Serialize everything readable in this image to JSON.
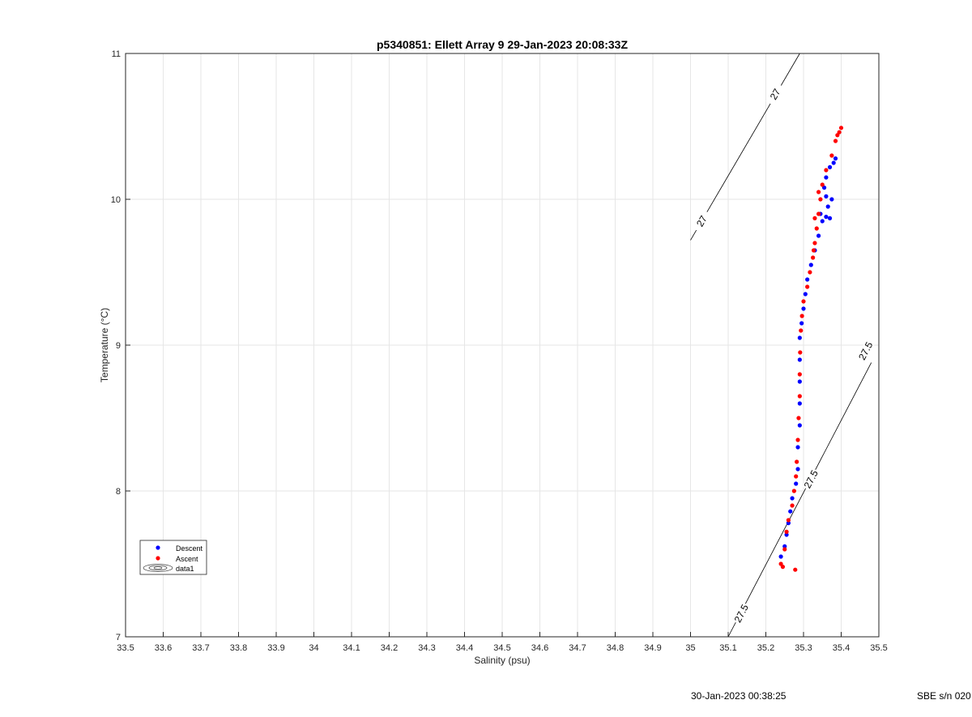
{
  "chart_data": {
    "type": "scatter",
    "title": "p5340851: Ellett Array 9 29-Jan-2023 20:08:33Z",
    "xlabel": "Salinity (psu)",
    "ylabel": "Temperature (°C)",
    "xlim": [
      33.5,
      35.5
    ],
    "ylim": [
      7,
      11
    ],
    "xticks": [
      "33.5",
      "33.6",
      "33.7",
      "33.8",
      "33.9",
      "34",
      "34.1",
      "34.2",
      "34.3",
      "34.4",
      "34.5",
      "34.6",
      "34.7",
      "34.8",
      "34.9",
      "35",
      "35.1",
      "35.2",
      "35.3",
      "35.4",
      "35.5"
    ],
    "yticks": [
      "7",
      "8",
      "9",
      "10",
      "11"
    ],
    "grid": true,
    "legend_position": "lower-left",
    "legend": [
      "Descent",
      "Ascent",
      "data1"
    ],
    "series": [
      {
        "name": "Descent",
        "color": "#0000ff",
        "points": [
          [
            35.24,
            7.55
          ],
          [
            35.25,
            7.62
          ],
          [
            35.255,
            7.7
          ],
          [
            35.26,
            7.78
          ],
          [
            35.265,
            7.86
          ],
          [
            35.27,
            7.95
          ],
          [
            35.28,
            8.05
          ],
          [
            35.285,
            8.15
          ],
          [
            35.285,
            8.3
          ],
          [
            35.29,
            8.45
          ],
          [
            35.29,
            8.6
          ],
          [
            35.29,
            8.75
          ],
          [
            35.29,
            8.9
          ],
          [
            35.29,
            9.05
          ],
          [
            35.295,
            9.15
          ],
          [
            35.3,
            9.25
          ],
          [
            35.305,
            9.35
          ],
          [
            35.31,
            9.45
          ],
          [
            35.32,
            9.55
          ],
          [
            35.33,
            9.65
          ],
          [
            35.34,
            9.75
          ],
          [
            35.35,
            9.85
          ],
          [
            35.36,
            9.88
          ],
          [
            35.365,
            9.95
          ],
          [
            35.36,
            10.02
          ],
          [
            35.355,
            10.08
          ],
          [
            35.36,
            10.15
          ],
          [
            35.37,
            10.22
          ],
          [
            35.38,
            10.25
          ],
          [
            35.385,
            10.28
          ],
          [
            35.345,
            9.9
          ],
          [
            35.37,
            9.87
          ],
          [
            35.375,
            10.0
          ]
        ]
      },
      {
        "name": "Ascent",
        "color": "#ff0000",
        "points": [
          [
            35.24,
            7.5
          ],
          [
            35.245,
            7.48
          ],
          [
            35.278,
            7.46
          ],
          [
            35.25,
            7.6
          ],
          [
            35.255,
            7.72
          ],
          [
            35.26,
            7.8
          ],
          [
            35.27,
            7.9
          ],
          [
            35.275,
            8.0
          ],
          [
            35.28,
            8.1
          ],
          [
            35.282,
            8.2
          ],
          [
            35.285,
            8.35
          ],
          [
            35.287,
            8.5
          ],
          [
            35.29,
            8.65
          ],
          [
            35.29,
            8.8
          ],
          [
            35.291,
            8.95
          ],
          [
            35.293,
            9.1
          ],
          [
            35.296,
            9.2
          ],
          [
            35.3,
            9.3
          ],
          [
            35.31,
            9.4
          ],
          [
            35.317,
            9.5
          ],
          [
            35.325,
            9.6
          ],
          [
            35.33,
            9.7
          ],
          [
            35.335,
            9.8
          ],
          [
            35.34,
            9.9
          ],
          [
            35.345,
            10.0
          ],
          [
            35.35,
            10.1
          ],
          [
            35.36,
            10.2
          ],
          [
            35.375,
            10.3
          ],
          [
            35.385,
            10.4
          ],
          [
            35.395,
            10.46
          ],
          [
            35.4,
            10.49
          ],
          [
            35.39,
            10.44
          ],
          [
            35.34,
            10.05
          ],
          [
            35.33,
            9.87
          ],
          [
            35.327,
            9.65
          ]
        ]
      }
    ],
    "contours": [
      {
        "label": "27",
        "points": [
          [
            35.0,
            9.72
          ],
          [
            35.29,
            11.0
          ]
        ],
        "label_positions": [
          [
            35.03,
            9.85
          ],
          [
            35.225,
            10.72
          ]
        ]
      },
      {
        "label": "27.5",
        "points": [
          [
            35.1,
            7.0
          ],
          [
            35.48,
            8.88
          ]
        ],
        "label_positions": [
          [
            35.135,
            7.16
          ],
          [
            35.32,
            8.08
          ],
          [
            35.465,
            8.96
          ]
        ]
      }
    ]
  },
  "footer": {
    "date": "30-Jan-2023 00:38:25",
    "serial": "SBE s/n 020"
  }
}
